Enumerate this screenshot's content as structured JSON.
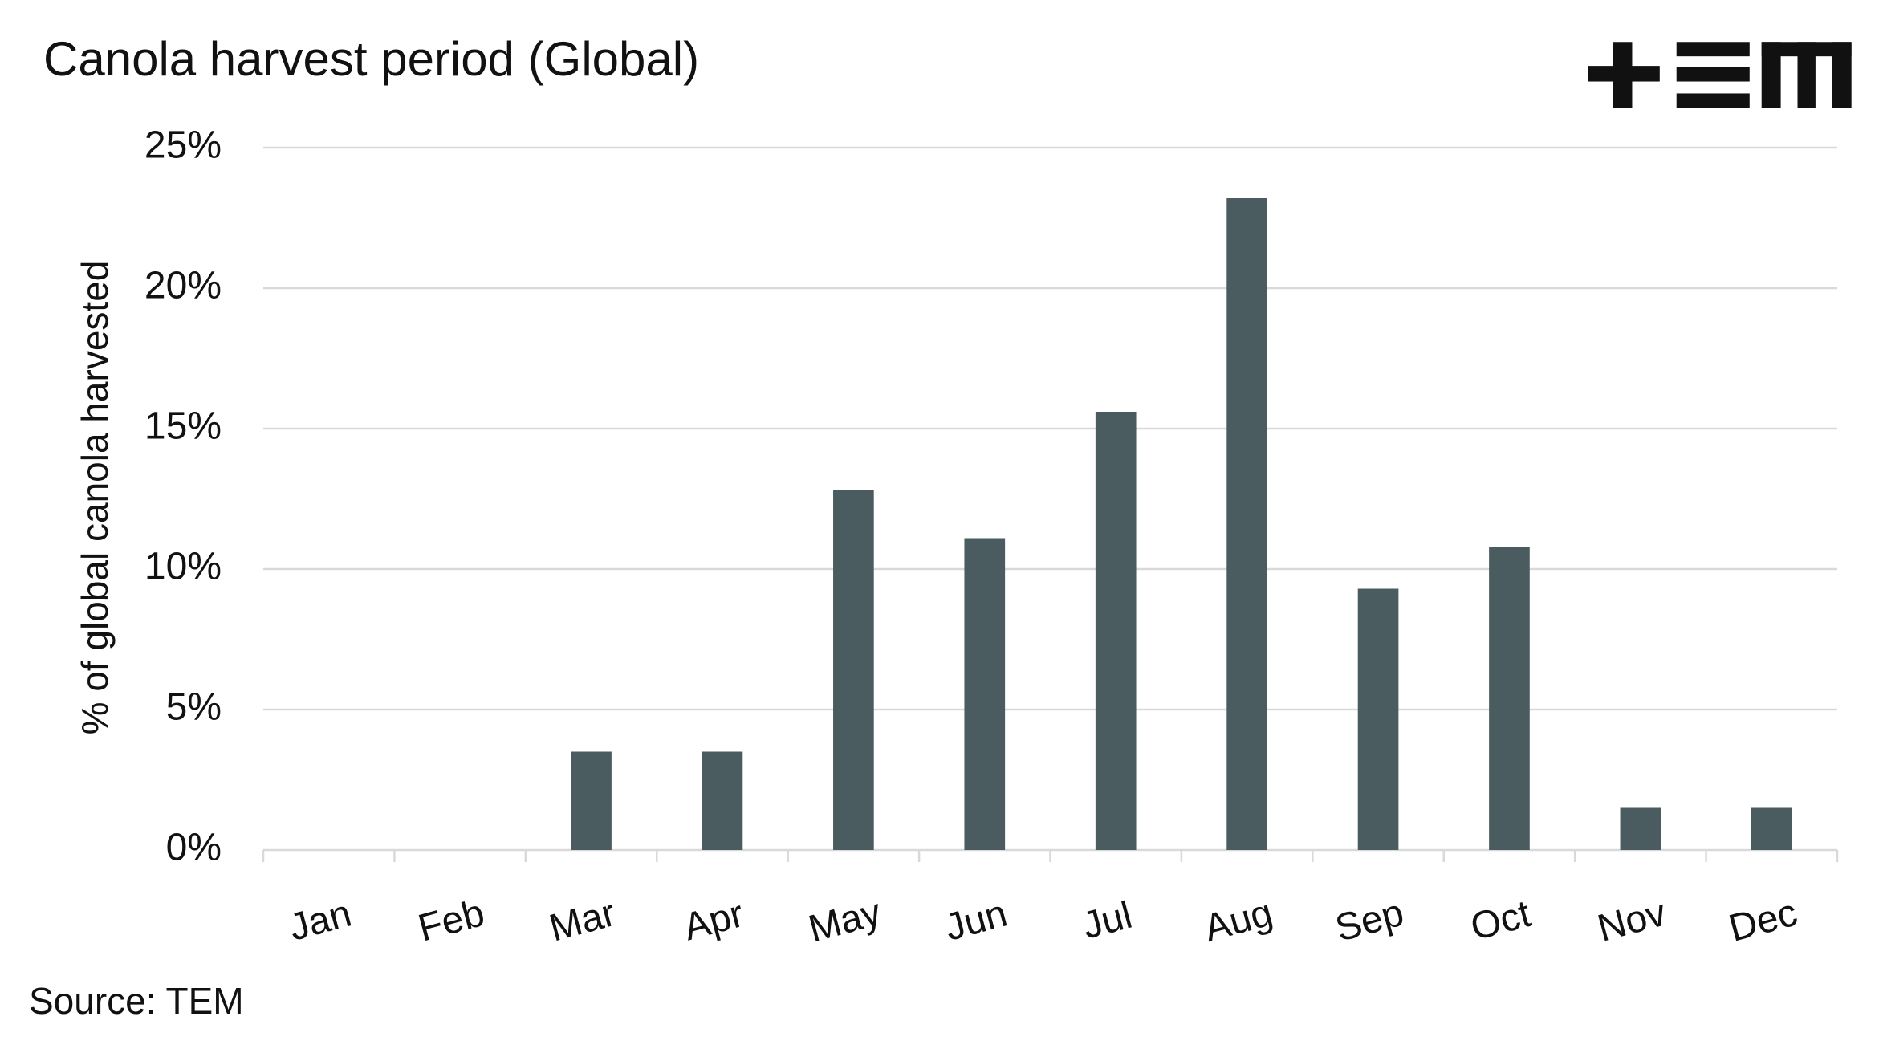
{
  "chart_data": {
    "type": "bar",
    "title": "Canola harvest period (Global)",
    "y_label": "% of global canola harvested",
    "source": "Source: TEM",
    "categories": [
      "Jan",
      "Feb",
      "Mar",
      "Apr",
      "May",
      "Jun",
      "Jul",
      "Aug",
      "Sep",
      "Oct",
      "Nov",
      "Dec"
    ],
    "values": [
      0,
      0,
      3.5,
      3.5,
      12.8,
      11.1,
      15.6,
      23.2,
      9.3,
      10.8,
      1.5,
      1.5
    ],
    "color": "#4a5c60",
    "ylim": [
      0,
      25
    ],
    "yticks": [
      {
        "value": 0,
        "label": "0%"
      },
      {
        "value": 5,
        "label": "5%"
      },
      {
        "value": 10,
        "label": "10%"
      },
      {
        "value": 15,
        "label": "15%"
      },
      {
        "value": 20,
        "label": "20%"
      },
      {
        "value": 25,
        "label": "25%"
      }
    ],
    "grid": true
  }
}
